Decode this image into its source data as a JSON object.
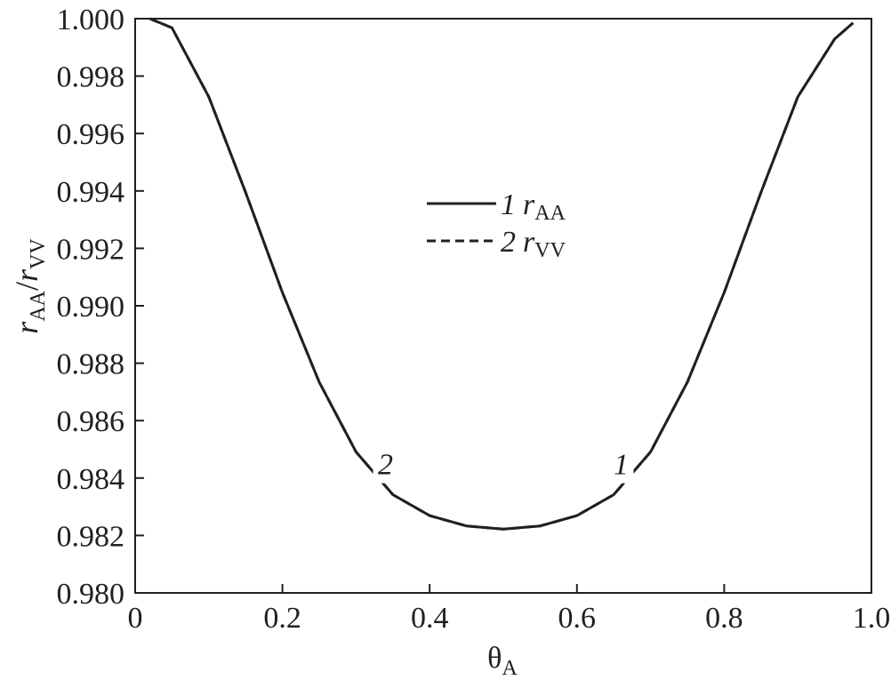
{
  "chart_data": {
    "type": "line",
    "title": "",
    "xlabel": {
      "base": "θ",
      "sub": "A"
    },
    "ylabel": {
      "num": "r",
      "num_sub": "AA",
      "sep": "/",
      "den": "r",
      "den_sub": "VV"
    },
    "xlim": [
      0,
      1.0
    ],
    "ylim": [
      0.98,
      1.0
    ],
    "xticks": [
      {
        "value": 0,
        "label": "0"
      },
      {
        "value": 0.2,
        "label": "0.2"
      },
      {
        "value": 0.4,
        "label": "0.4"
      },
      {
        "value": 0.6,
        "label": "0.6"
      },
      {
        "value": 0.8,
        "label": "0.8"
      },
      {
        "value": 1.0,
        "label": "1.0"
      }
    ],
    "yticks": [
      {
        "value": 0.98,
        "label": "0.980"
      },
      {
        "value": 0.982,
        "label": "0.982"
      },
      {
        "value": 0.984,
        "label": "0.984"
      },
      {
        "value": 0.986,
        "label": "0.986"
      },
      {
        "value": 0.988,
        "label": "0.988"
      },
      {
        "value": 0.99,
        "label": "0.990"
      },
      {
        "value": 0.992,
        "label": "0.992"
      },
      {
        "value": 0.994,
        "label": "0.994"
      },
      {
        "value": 0.996,
        "label": "0.996"
      },
      {
        "value": 0.998,
        "label": "0.998"
      },
      {
        "value": 1.0,
        "label": "1.000"
      }
    ],
    "grid": false,
    "legend_position": "center",
    "series": [
      {
        "name": "1 rAA",
        "legend_number": "1",
        "legend_symbol": "r",
        "legend_sub": "AA",
        "curve_label": "1",
        "style": "solid",
        "color": "#231f20",
        "x": [
          0.02,
          0.05,
          0.1,
          0.15,
          0.2,
          0.25,
          0.3,
          0.35,
          0.4,
          0.45,
          0.5,
          0.55,
          0.6,
          0.65,
          0.7,
          0.75,
          0.8,
          0.85,
          0.9,
          0.95,
          0.975
        ],
        "y": [
          1.0,
          0.99968,
          0.99728,
          0.99395,
          0.99046,
          0.98734,
          0.98491,
          0.98342,
          0.98269,
          0.98233,
          0.98222,
          0.98233,
          0.98269,
          0.98342,
          0.98491,
          0.98734,
          0.99046,
          0.99395,
          0.99728,
          0.99929,
          0.99985
        ]
      },
      {
        "name": "2 rVV",
        "legend_number": "2",
        "legend_symbol": "r",
        "legend_sub": "VV",
        "curve_label": "2",
        "style": "dashed",
        "color": "#231f20",
        "x": [
          0.02,
          0.05,
          0.1,
          0.15,
          0.2,
          0.25,
          0.3,
          0.35,
          0.4,
          0.45,
          0.5,
          0.55,
          0.6,
          0.65,
          0.7,
          0.75,
          0.8,
          0.85,
          0.9,
          0.95,
          0.975
        ],
        "y": [
          1.0,
          0.99968,
          0.99728,
          0.99395,
          0.99046,
          0.98734,
          0.98491,
          0.98342,
          0.98269,
          0.98233,
          0.98222,
          0.98233,
          0.98269,
          0.98342,
          0.98491,
          0.98734,
          0.99046,
          0.99395,
          0.99728,
          0.99929,
          0.99985
        ]
      }
    ],
    "curve_labels": [
      {
        "text": "2",
        "x": 0.34,
        "y": 0.9845
      },
      {
        "text": "1",
        "x": 0.66,
        "y": 0.9845
      }
    ]
  }
}
